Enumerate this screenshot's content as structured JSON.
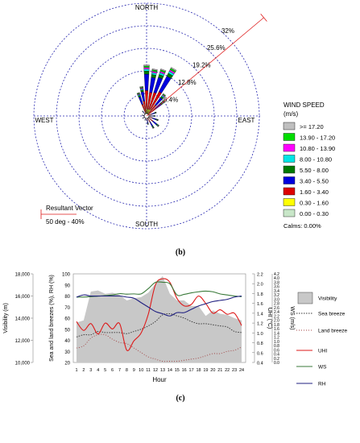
{
  "panels": {
    "b_label": "(b)",
    "c_label": "(c)"
  },
  "chart_data": [
    {
      "type": "wind-rose",
      "directions": [
        "NORTH",
        "EAST",
        "SOUTH",
        "WEST"
      ],
      "ring_labels": [
        "6.4%",
        "12.8%",
        "19.2%",
        "25.6%",
        "32%"
      ],
      "legend_title": "WIND SPEED",
      "legend_unit": "(m/s)",
      "legend_entries": [
        {
          "label": ">= 17.20",
          "color": "#bfbfbf"
        },
        {
          "label": "13.90 - 17.20",
          "color": "#00dd00"
        },
        {
          "label": "10.80 - 13.90",
          "color": "#ff00ff"
        },
        {
          "label": "8.00 - 10.80",
          "color": "#00e5e5"
        },
        {
          "label": "5.50 - 8.00",
          "color": "#007a00"
        },
        {
          "label": "3.40 - 5.50",
          "color": "#0000dd"
        },
        {
          "label": "1.60 - 3.40",
          "color": "#dd0000"
        },
        {
          "label": "0.30 - 1.60",
          "color": "#ffff00"
        },
        {
          "label": "0.00 - 0.30",
          "color": "#c8e6c8"
        }
      ],
      "calms": "Calms: 0.00%",
      "resultant_label": "Resultant Vector",
      "resultant_value": "50 deg - 40%",
      "resultant_angle_deg": 50,
      "petals": [
        {
          "angle": 0,
          "pct": 14.5
        },
        {
          "angle": 10,
          "pct": 13.5
        },
        {
          "angle": 20,
          "pct": 14.0
        },
        {
          "angle": 30,
          "pct": 15.5
        },
        {
          "angle": 40,
          "pct": 8.0
        },
        {
          "angle": 50,
          "pct": 6.5
        },
        {
          "angle": 70,
          "pct": 3.0
        },
        {
          "angle": 90,
          "pct": 2.5
        },
        {
          "angle": 110,
          "pct": 3.5
        },
        {
          "angle": 130,
          "pct": 4.5
        },
        {
          "angle": 150,
          "pct": 4.0
        },
        {
          "angle": 170,
          "pct": 2.5
        },
        {
          "angle": 200,
          "pct": 1.5
        },
        {
          "angle": 240,
          "pct": 1.5
        },
        {
          "angle": 280,
          "pct": 1.5
        },
        {
          "angle": 320,
          "pct": 2.0
        },
        {
          "angle": 340,
          "pct": 7.0
        },
        {
          "angle": 350,
          "pct": 8.5
        }
      ]
    },
    {
      "type": "line",
      "x": [
        1,
        2,
        3,
        4,
        5,
        6,
        7,
        8,
        9,
        10,
        11,
        12,
        13,
        14,
        15,
        16,
        17,
        18,
        19,
        20,
        21,
        22,
        23,
        24
      ],
      "xlabel": "Hour",
      "ylabel_left_outer": "Visibility (m)",
      "ylabel_left_inner": "Sea and land breezes (%), RH (%)",
      "ylabel_right_inner": "UHI (°C)",
      "ylabel_right_outer": "WS (m/s)",
      "visibility_ticks": [
        "10,000",
        "12,000",
        "14,000",
        "16,000",
        "18,000"
      ],
      "pct_ticks": [
        "20",
        "30",
        "40",
        "50",
        "60",
        "70",
        "80",
        "90",
        "100"
      ],
      "uhi_ticks": [
        "0.4",
        "0.6",
        "0.8",
        "1.0",
        "1.2",
        "1.4",
        "1.6",
        "1.8",
        "2.0",
        "2.2"
      ],
      "ws_ticks": [
        "0.0",
        "0.2",
        "0.4",
        "0.6",
        "0.8",
        "1.0",
        "1.2",
        "1.4",
        "1.6",
        "1.8",
        "2.0",
        "2.2",
        "2.4",
        "2.6",
        "2.8",
        "3.0",
        "3.2",
        "3.4",
        "3.6",
        "3.8",
        "4.0",
        "4.2"
      ],
      "series": [
        {
          "name": "Visibility",
          "axis": "visibility",
          "color": "#c8c8c8",
          "values": [
            13600,
            13800,
            16400,
            16500,
            16200,
            16300,
            16100,
            15600,
            15800,
            15900,
            16300,
            17100,
            17800,
            16200,
            15600,
            15600,
            15100,
            15100,
            14200,
            14700,
            14400,
            14300,
            14000,
            13800
          ]
        },
        {
          "name": "Sea breeze",
          "axis": "pct",
          "color": "#333333",
          "values": [
            43,
            45,
            45,
            48,
            47,
            47,
            47,
            46,
            48,
            50,
            53,
            57,
            63,
            64,
            62,
            60,
            57,
            55,
            55,
            54,
            53,
            52,
            48,
            47
          ]
        },
        {
          "name": "Land breeze",
          "axis": "pct",
          "color": "#333333",
          "values": [
            33,
            35,
            42,
            45,
            45,
            41,
            38,
            37,
            33,
            29,
            25,
            23,
            21,
            21,
            21,
            22,
            23,
            24,
            26,
            28,
            28,
            30,
            31,
            34
          ]
        },
        {
          "name": "UHI",
          "axis": "uhi",
          "color": "#dd1a1a",
          "values": [
            1.23,
            1.05,
            1.19,
            0.98,
            1.2,
            1.08,
            1.19,
            0.65,
            0.84,
            1.0,
            1.38,
            1.98,
            2.1,
            2.03,
            1.7,
            1.55,
            1.58,
            1.75,
            1.6,
            1.4,
            1.47,
            1.38,
            1.4,
            1.15
          ]
        },
        {
          "name": "WS",
          "axis": "ws",
          "color": "#3a7a3a",
          "values": [
            3.1,
            3.1,
            3.12,
            3.14,
            3.17,
            3.2,
            3.26,
            3.24,
            3.25,
            3.25,
            3.5,
            3.8,
            3.8,
            3.73,
            3.2,
            3.23,
            3.3,
            3.35,
            3.38,
            3.35,
            3.25,
            3.2,
            3.15,
            3.12
          ]
        },
        {
          "name": "RH",
          "axis": "pct",
          "color": "#202080",
          "values": [
            79,
            81,
            80,
            80,
            80,
            80,
            80,
            79,
            78,
            74,
            70,
            66,
            64,
            62,
            65,
            65,
            68,
            71,
            73,
            75,
            76,
            77,
            79,
            80
          ]
        }
      ]
    }
  ]
}
